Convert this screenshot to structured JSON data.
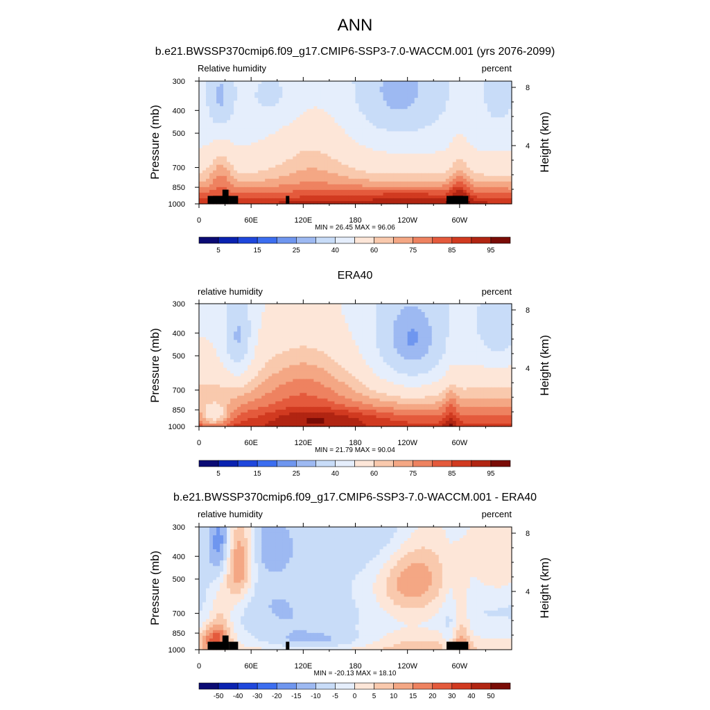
{
  "main_title": "ANN",
  "colors": {
    "terrain": "#000000",
    "background": "#ffffff",
    "abs_palette": [
      "#0b0b74",
      "#0a22b0",
      "#1f47dc",
      "#3c6ef0",
      "#6f96ef",
      "#9db9f2",
      "#c8dcf8",
      "#e5eefc",
      "#fde6d8",
      "#f9c9ad",
      "#f4a784",
      "#ee8260",
      "#e45a3c",
      "#d13a20",
      "#b12512",
      "#7a0c06"
    ],
    "diff_palette": [
      "#0b0b74",
      "#0a22b0",
      "#1f47dc",
      "#3c6ef0",
      "#6f96ef",
      "#9db9f2",
      "#c8dcf8",
      "#e5eefc",
      "#fde6d8",
      "#f9c9ad",
      "#f4a784",
      "#ee8260",
      "#e45a3c",
      "#d13a20",
      "#b12512",
      "#7a0c06"
    ]
  },
  "chart_data": [
    {
      "type": "heatmap",
      "title": "b.e21.BWSSP370cmip6.f09_g17.CMIP6-SSP3-7.0-WACCM.001 (yrs 2076-2099)",
      "left_label": "Relative humidity",
      "right_label": "percent",
      "ylabel": "Pressure (mb)",
      "y2label": "Height (km)",
      "x_ticks": [
        "0",
        "60E",
        "120E",
        "180",
        "120W",
        "60W"
      ],
      "x_tick_lons": [
        0,
        60,
        120,
        180,
        240,
        300
      ],
      "xlim": [
        0,
        360
      ],
      "y_ticks": [
        "300",
        "400",
        "500",
        "700",
        "850",
        "1000"
      ],
      "y_tick_values": [
        300,
        400,
        500,
        700,
        850,
        1000
      ],
      "ylim": [
        1000,
        300
      ],
      "y2_ticks": [
        "8",
        "4"
      ],
      "y2_tick_values": [
        8,
        4
      ],
      "stats": "MIN =  26.45  MAX =  96.06",
      "min": 26.45,
      "max": 96.06,
      "colorbar_labels": [
        "5",
        "15",
        "25",
        "40",
        "60",
        "75",
        "85",
        "95"
      ],
      "colorbar_label_slots": [
        1,
        3,
        5,
        7,
        9,
        11,
        13,
        15
      ],
      "field": "model",
      "terrain": true
    },
    {
      "type": "heatmap",
      "title": "ERA40",
      "left_label": "relative humidity",
      "right_label": "percent",
      "ylabel": "Pressure (mb)",
      "y2label": "Height (km)",
      "x_ticks": [
        "0",
        "60E",
        "120E",
        "180",
        "120W",
        "60W"
      ],
      "x_tick_lons": [
        0,
        60,
        120,
        180,
        240,
        300
      ],
      "xlim": [
        0,
        360
      ],
      "y_ticks": [
        "300",
        "400",
        "500",
        "700",
        "850",
        "1000"
      ],
      "y_tick_values": [
        300,
        400,
        500,
        700,
        850,
        1000
      ],
      "ylim": [
        1000,
        300
      ],
      "y2_ticks": [
        "8",
        "4"
      ],
      "y2_tick_values": [
        8,
        4
      ],
      "stats": "MIN =  21.79  MAX =  90.04",
      "min": 21.79,
      "max": 90.04,
      "colorbar_labels": [
        "5",
        "15",
        "25",
        "40",
        "60",
        "75",
        "85",
        "95"
      ],
      "colorbar_label_slots": [
        1,
        3,
        5,
        7,
        9,
        11,
        13,
        15
      ],
      "field": "obs",
      "terrain": false
    },
    {
      "type": "heatmap",
      "title": "b.e21.BWSSP370cmip6.f09_g17.CMIP6-SSP3-7.0-WACCM.001 - ERA40",
      "left_label": "relative humidity",
      "right_label": "percent",
      "ylabel": "Pressure (mb)",
      "y2label": "Height (km)",
      "x_ticks": [
        "0",
        "60E",
        "120E",
        "180",
        "120W",
        "60W"
      ],
      "x_tick_lons": [
        0,
        60,
        120,
        180,
        240,
        300
      ],
      "xlim": [
        0,
        360
      ],
      "y_ticks": [
        "300",
        "400",
        "500",
        "700",
        "850",
        "1000"
      ],
      "y_tick_values": [
        300,
        400,
        500,
        700,
        850,
        1000
      ],
      "ylim": [
        1000,
        300
      ],
      "y2_ticks": [
        "8",
        "4"
      ],
      "y2_tick_values": [
        8,
        4
      ],
      "stats": "MIN = -20.13  MAX =  18.10",
      "min": -20.13,
      "max": 18.1,
      "colorbar_labels": [
        "-50",
        "-40",
        "-30",
        "-20",
        "-15",
        "-10",
        "-5",
        "0",
        "5",
        "10",
        "15",
        "20",
        "30",
        "40",
        "50"
      ],
      "colorbar_label_slots": [
        1,
        2,
        3,
        4,
        5,
        6,
        7,
        8,
        9,
        10,
        11,
        12,
        13,
        14,
        15
      ],
      "field": "diff",
      "terrain": true
    }
  ]
}
